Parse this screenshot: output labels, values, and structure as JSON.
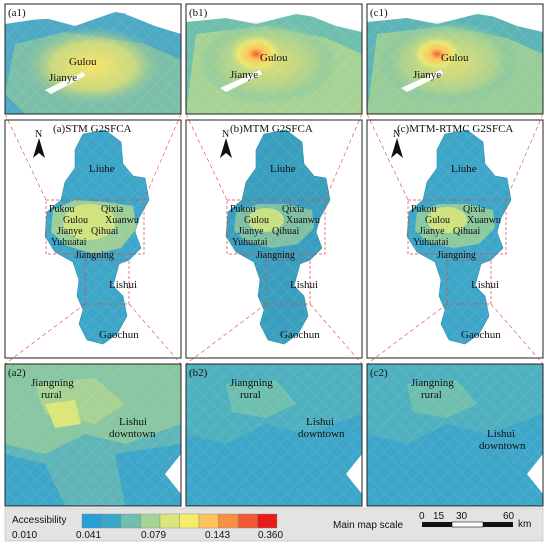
{
  "top_panels": [
    {
      "tag": "(a1)",
      "places": [
        "Gulou",
        "Jianye"
      ]
    },
    {
      "tag": "(b1)",
      "places": [
        "Gulou",
        "Jianye"
      ]
    },
    {
      "tag": "(c1)",
      "places": [
        "Gulou",
        "Jianye"
      ]
    }
  ],
  "middle_panels": [
    {
      "title": "(a)STM G2SFCA"
    },
    {
      "title": "(b)MTM G2SFCA"
    },
    {
      "title": "(c)MTM-RTMC G2SFCA"
    }
  ],
  "district_labels": {
    "liuhe": "Liuhe",
    "pukou": "Pukou",
    "qixia": "Qixia",
    "gulou": "Gulou",
    "xuanwu": "Xuanwu",
    "jianye": "Jianye",
    "qihuai": "Qihuai",
    "yuhuatai": "Yuhuatai",
    "jiangning": "Jiangning",
    "lishui": "Lishui",
    "gaochun": "Gaochun"
  },
  "bottom_panels": [
    {
      "tag": "(a2)",
      "place1": "Jiangning",
      "place1b": "rural",
      "place2": "Lishui",
      "place2b": "downtown"
    },
    {
      "tag": "(b2)",
      "place1": "Jiangning",
      "place1b": "rural",
      "place2": "Lishui",
      "place2b": "downtown"
    },
    {
      "tag": "(c2)",
      "place1": "Jiangning",
      "place1b": "rural",
      "place2": "Lishui",
      "place2b": "downtown"
    }
  ],
  "north_arrow": {
    "letter": "N"
  },
  "legend": {
    "title": "Accessibility",
    "colors": [
      "#2a9fd6",
      "#3aa7c9",
      "#6fbfae",
      "#a6d394",
      "#dbe67a",
      "#f6ec6a",
      "#fdc25a",
      "#f98f45",
      "#f35a33",
      "#e81b1b"
    ],
    "ticks": [
      "0.010",
      "0.041",
      "0.079",
      "0.143",
      "0.360"
    ]
  },
  "scale_bar": {
    "label": "Main map scale",
    "ticks": [
      "0",
      "15",
      "30",
      "60"
    ],
    "unit": "km"
  }
}
